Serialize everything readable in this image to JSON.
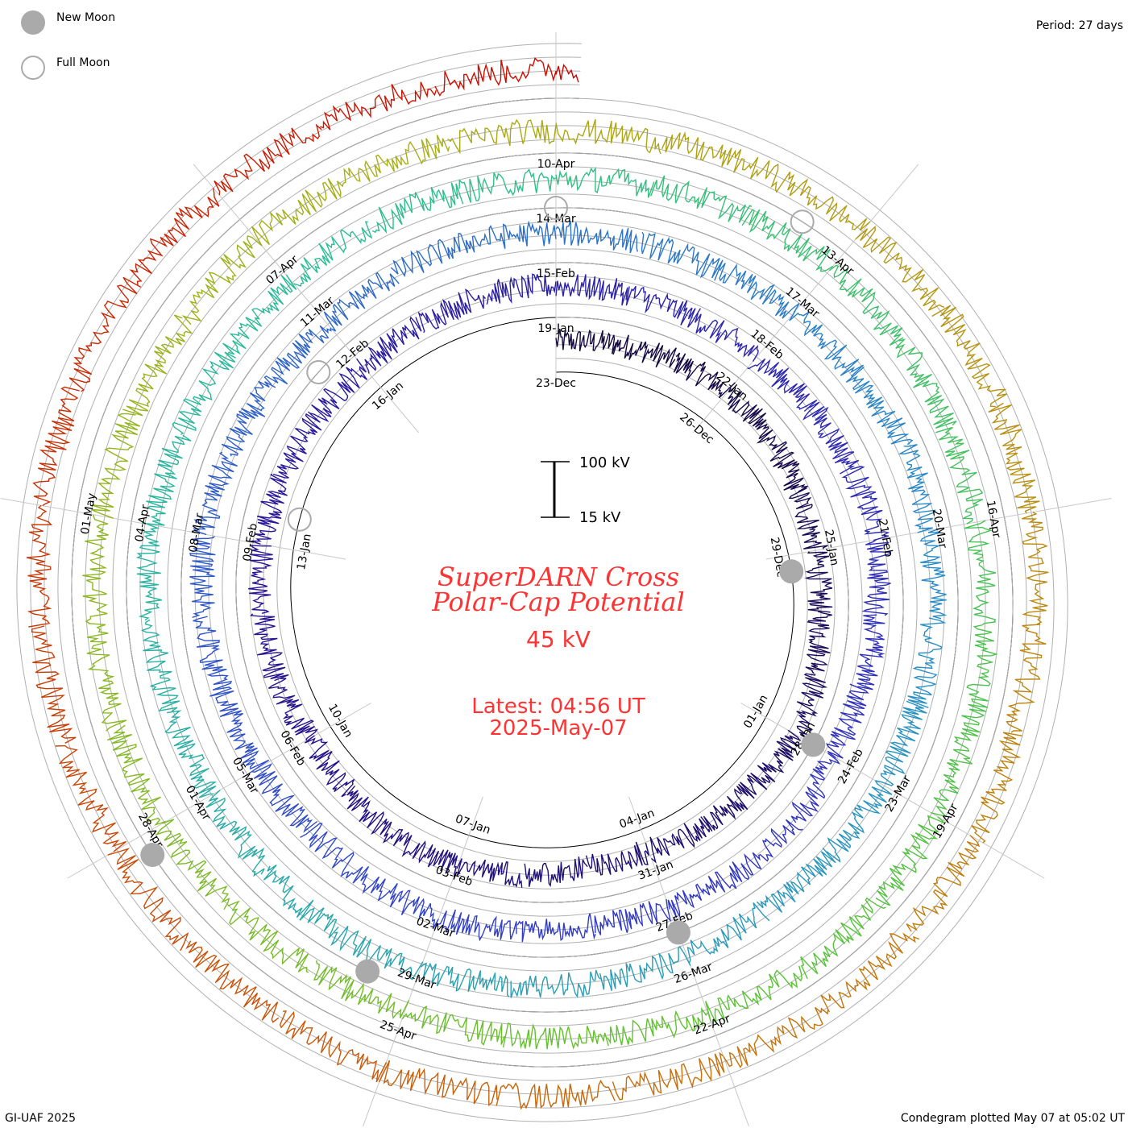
{
  "legend": {
    "new_moon": "New Moon",
    "full_moon": "Full Moon"
  },
  "period_text": "Period: 27 days",
  "footer_left": "GI-UAF 2025",
  "footer_right": "Condegram plotted May 07 at 05:02 UT",
  "colors": {
    "title": "#ff3333",
    "moon": "#aaaaaa",
    "grid": "#b0b0b0"
  },
  "chart_data": {
    "type": "line",
    "subtype": "spiral condegram",
    "title_line1": "SuperDARN Cross",
    "title_line2": "Polar-Cap Potential",
    "current_value": "45 kV",
    "latest_time": "Latest: 04:56 UT",
    "latest_date": "2025-May-07",
    "scale_top": "100 kV",
    "scale_bottom": "15 kV",
    "scale_range_kv": [
      15,
      100
    ],
    "period_days": 27,
    "start_date": "23-Dec",
    "end_day_offset": 135.2,
    "date_labels": [
      "23-Dec",
      "26-Dec",
      "29-Dec",
      "01-Jan",
      "04-Jan",
      "07-Jan",
      "10-Jan",
      "13-Jan",
      "16-Jan",
      "19-Jan",
      "22-Jan",
      "25-Jan",
      "28-Jan",
      "31-Jan",
      "03-Feb",
      "06-Feb",
      "09-Feb",
      "12-Feb",
      "15-Feb",
      "18-Feb",
      "21-Feb",
      "24-Feb",
      "27-Feb",
      "02-Mar",
      "05-Mar",
      "08-Mar",
      "11-Mar",
      "14-Mar",
      "17-Mar",
      "20-Mar",
      "23-Mar",
      "26-Mar",
      "29-Mar",
      "01-Apr",
      "04-Apr",
      "07-Apr",
      "10-Apr",
      "13-Apr",
      "16-Apr",
      "19-Apr",
      "22-Apr",
      "25-Apr",
      "28-Apr",
      "01-May"
    ],
    "label_interval_days": 3,
    "new_moon_days": [
      6.3,
      36.0,
      66.0,
      96.5,
      125.8
    ],
    "full_moon_days": [
      21.5,
      50.5,
      81.0,
      110.5
    ],
    "daily_kv": [
      62,
      66,
      70,
      72,
      68,
      60,
      58,
      55,
      65,
      70,
      62,
      58,
      50,
      48,
      60,
      66,
      70,
      55,
      52,
      58,
      62,
      65,
      60,
      58,
      56,
      60,
      66,
      64,
      62,
      58,
      55,
      62,
      66,
      70,
      58,
      52,
      50,
      60,
      62,
      58,
      56,
      62,
      66,
      60,
      55,
      58,
      62,
      66,
      70,
      64,
      60,
      58,
      62,
      66,
      60,
      58,
      55,
      60,
      64,
      70,
      66,
      62,
      58,
      55,
      50,
      48,
      52,
      58,
      62,
      66,
      70,
      62,
      58,
      60,
      64,
      66,
      62,
      58,
      60,
      62,
      60,
      58,
      64,
      66,
      70,
      62,
      58,
      55,
      60,
      62,
      66,
      70,
      72,
      64,
      58,
      55,
      50,
      52,
      58,
      60,
      64,
      66,
      62,
      58,
      56,
      60,
      56,
      52,
      50,
      48,
      55,
      58,
      62,
      60,
      55,
      50,
      45,
      48,
      52,
      55,
      58,
      60,
      62,
      64,
      60,
      58,
      56,
      62,
      66,
      70,
      72,
      74,
      70,
      66,
      62,
      60,
      58,
      56,
      45
    ]
  }
}
